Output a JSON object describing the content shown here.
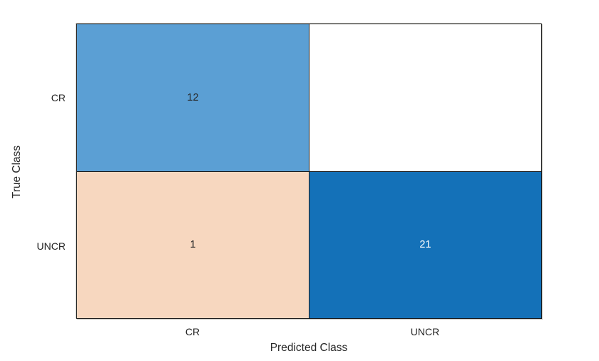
{
  "chart_data": {
    "type": "heatmap",
    "subtype": "confusion-matrix",
    "title": "",
    "xlabel": "Predicted Class",
    "ylabel": "True Class",
    "x_categories": [
      "CR",
      "UNCR"
    ],
    "y_categories": [
      "CR",
      "UNCR"
    ],
    "matrix": [
      [
        12,
        0
      ],
      [
        1,
        21
      ]
    ],
    "cells": [
      {
        "true_class": "CR",
        "predicted_class": "CR",
        "value": "12",
        "count": 12,
        "bg": "#5B9FD4",
        "text_color": "#262626"
      },
      {
        "true_class": "CR",
        "predicted_class": "UNCR",
        "value": "",
        "count": 0,
        "bg": "#FFFFFF",
        "text_color": "#262626"
      },
      {
        "true_class": "UNCR",
        "predicted_class": "CR",
        "value": "1",
        "count": 1,
        "bg": "#F7D7BF",
        "text_color": "#262626"
      },
      {
        "true_class": "UNCR",
        "predicted_class": "UNCR",
        "value": "21",
        "count": 21,
        "bg": "#1471B8",
        "text_color": "#FFFFFF"
      }
    ],
    "grid_color": "#1a1a1a",
    "background": "#FFFFFF",
    "legend": "off",
    "grid": "on"
  }
}
